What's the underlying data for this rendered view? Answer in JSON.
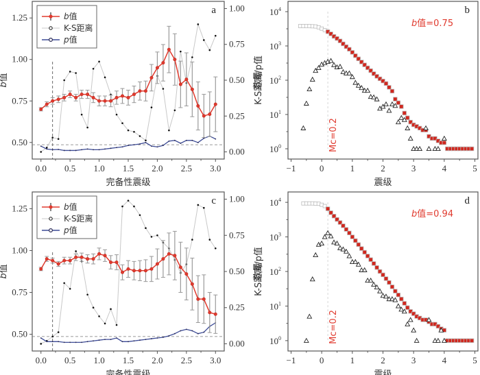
{
  "chart_data": [
    {
      "panel": "a",
      "type": "line",
      "xlabel": "完备性震级",
      "ylabel": "b值",
      "y2label": "K-S距离/p值",
      "xlim": [
        -0.15,
        3.15
      ],
      "ylim": [
        0.4,
        1.35
      ],
      "y2lim": [
        -0.05,
        1.05
      ],
      "xticks": [
        "0.0",
        "0.5",
        "1.0",
        "1.5",
        "2.0",
        "2.5",
        "3.0"
      ],
      "yticks": [
        "0.50",
        "0.75",
        "1.00",
        "1.25"
      ],
      "y2ticks": [
        "0.00",
        "0.25",
        "0.50",
        "0.75",
        "1.00"
      ],
      "legend": [
        "b值",
        "K-S距离",
        "p值"
      ],
      "legend_position": "top-left",
      "mc_line": 0.2,
      "p_threshold": 0.05,
      "x": [
        0.0,
        0.1,
        0.2,
        0.3,
        0.4,
        0.5,
        0.6,
        0.7,
        0.8,
        0.9,
        1.0,
        1.1,
        1.2,
        1.3,
        1.4,
        1.5,
        1.6,
        1.7,
        1.8,
        1.9,
        2.0,
        2.1,
        2.2,
        2.3,
        2.4,
        2.5,
        2.6,
        2.7,
        2.8,
        2.9,
        3.0
      ],
      "series": [
        {
          "name": "b值",
          "axis": "left",
          "values": [
            0.7,
            0.73,
            0.75,
            0.76,
            0.77,
            0.79,
            0.77,
            0.79,
            0.79,
            0.77,
            0.75,
            0.75,
            0.75,
            0.77,
            0.78,
            0.77,
            0.79,
            0.81,
            0.81,
            0.89,
            0.95,
            0.98,
            1.06,
            1.0,
            0.85,
            0.88,
            0.82,
            0.72,
            0.66,
            0.67,
            0.73
          ],
          "errors": [
            0.01,
            0.015,
            0.02,
            0.02,
            0.02,
            0.02,
            0.02,
            0.025,
            0.025,
            0.03,
            0.03,
            0.03,
            0.035,
            0.04,
            0.045,
            0.045,
            0.05,
            0.055,
            0.06,
            0.08,
            0.095,
            0.11,
            0.14,
            0.155,
            0.14,
            0.16,
            0.165,
            0.145,
            0.13,
            0.135,
            0.165
          ]
        },
        {
          "name": "K-S距离",
          "axis": "right",
          "values": [
            0.0,
            0.03,
            0.1,
            0.09,
            0.5,
            0.56,
            0.55,
            0.26,
            0.17,
            0.58,
            0.63,
            0.52,
            0.4,
            0.26,
            0.2,
            0.15,
            0.14,
            0.11,
            0.08,
            0.31,
            0.53,
            0.44,
            0.15,
            0.29,
            0.7,
            0.48,
            0.66,
            0.89,
            0.78,
            0.71,
            0.81
          ]
        },
        {
          "name": "p值",
          "axis": "right",
          "values": [
            0.04,
            0.02,
            0.015,
            0.017,
            0.01,
            0.01,
            0.01,
            0.015,
            0.02,
            0.015,
            0.015,
            0.02,
            0.025,
            0.03,
            0.035,
            0.045,
            0.05,
            0.055,
            0.065,
            0.04,
            0.035,
            0.045,
            0.075,
            0.08,
            0.06,
            0.08,
            0.08,
            0.065,
            0.095,
            0.11,
            0.09
          ]
        }
      ]
    },
    {
      "panel": "b",
      "type": "scatter",
      "xlabel": "震级",
      "ylabel": "数量",
      "yscale": "log",
      "xlim": [
        -1.1,
        5.1
      ],
      "ylim_log10": [
        -0.3,
        4.3
      ],
      "xticks": [
        "−1",
        "0",
        "1",
        "2",
        "3",
        "4",
        "5"
      ],
      "yticks": [
        "10^0",
        "10^1",
        "10^2",
        "10^3",
        "10^4"
      ],
      "annotation": "b值=0.75",
      "mc_label": "Mc=0.2",
      "mc": 0.2,
      "cumulative_below_mc": {
        "x": [
          -0.7,
          -0.6,
          -0.5,
          -0.4,
          -0.3,
          -0.2,
          -0.1,
          0.0,
          0.1
        ],
        "y": [
          3800,
          3800,
          3800,
          3780,
          3750,
          3700,
          3500,
          3200,
          2900
        ]
      },
      "cumulative": {
        "x": [
          0.2,
          0.3,
          0.4,
          0.5,
          0.6,
          0.7,
          0.8,
          0.9,
          1.0,
          1.1,
          1.2,
          1.3,
          1.4,
          1.5,
          1.6,
          1.7,
          1.8,
          1.9,
          2.0,
          2.1,
          2.2,
          2.3,
          2.4,
          2.5,
          2.6,
          2.7,
          2.8,
          2.9,
          3.0,
          3.1,
          3.2,
          3.3,
          3.4,
          3.5,
          3.6,
          3.7,
          3.8,
          3.9,
          4.0,
          4.1,
          4.2,
          4.3,
          4.4,
          4.5,
          4.6,
          4.7,
          4.8,
          4.9
        ],
        "y": [
          2600,
          2250,
          1900,
          1650,
          1400,
          1150,
          950,
          800,
          650,
          520,
          420,
          340,
          280,
          230,
          190,
          155,
          130,
          110,
          95,
          80,
          62,
          48,
          28,
          22,
          17,
          11,
          8,
          6,
          5,
          4.5,
          4,
          3.5,
          3.5,
          2.3,
          2,
          2,
          1.7,
          1.5,
          1.5,
          1,
          1,
          1,
          1,
          1,
          1,
          1,
          1,
          1
        ]
      },
      "noncumulative": {
        "x": [
          -0.6,
          -0.5,
          -0.4,
          -0.3,
          -0.2,
          -0.1,
          0.0,
          0.1,
          0.2,
          0.3,
          0.4,
          0.5,
          0.6,
          0.7,
          0.8,
          0.9,
          1.0,
          1.1,
          1.2,
          1.3,
          1.4,
          1.5,
          1.6,
          1.7,
          1.8,
          1.9,
          2.0,
          2.1,
          2.2,
          2.3,
          2.4,
          2.5,
          2.6,
          2.7,
          2.8,
          2.9,
          3.0,
          3.1,
          3.2,
          3.4,
          3.5,
          3.7,
          3.8,
          4.0
        ],
        "y": [
          4,
          21,
          55,
          105,
          190,
          230,
          290,
          320,
          350,
          370,
          280,
          240,
          250,
          175,
          160,
          160,
          125,
          85,
          70,
          60,
          50,
          50,
          33,
          32,
          28,
          15,
          17,
          20,
          13,
          20,
          18,
          6,
          8,
          7,
          4,
          2,
          1,
          1,
          1,
          4,
          1,
          1,
          1,
          2
        ]
      }
    },
    {
      "panel": "c",
      "type": "line",
      "xlabel": "完备性震级",
      "ylabel": "b值",
      "y2label": "K-S距离/p值",
      "xlim": [
        -0.15,
        3.15
      ],
      "ylim": [
        0.4,
        1.35
      ],
      "y2lim": [
        -0.05,
        1.05
      ],
      "xticks": [
        "0.0",
        "0.5",
        "1.0",
        "1.5",
        "2.0",
        "2.5",
        "3.0"
      ],
      "yticks": [
        "0.50",
        "0.75",
        "1.00",
        "1.25"
      ],
      "y2ticks": [
        "0.00",
        "0.25",
        "0.50",
        "0.75",
        "1.00"
      ],
      "legend": [
        "b值",
        "K-S距离",
        "p值"
      ],
      "legend_position": "top-left",
      "mc_line": 0.2,
      "p_threshold": 0.05,
      "x": [
        0.0,
        0.1,
        0.2,
        0.3,
        0.4,
        0.5,
        0.6,
        0.7,
        0.8,
        0.9,
        1.0,
        1.1,
        1.2,
        1.3,
        1.4,
        1.5,
        1.6,
        1.7,
        1.8,
        1.9,
        2.0,
        2.1,
        2.2,
        2.3,
        2.4,
        2.5,
        2.6,
        2.7,
        2.8,
        2.9,
        3.0
      ],
      "series": [
        {
          "name": "b值",
          "axis": "left",
          "values": [
            0.89,
            0.95,
            0.94,
            0.92,
            0.94,
            0.94,
            0.96,
            0.96,
            0.95,
            0.95,
            0.98,
            0.97,
            0.93,
            0.93,
            0.87,
            0.89,
            0.88,
            0.88,
            0.88,
            0.89,
            0.92,
            0.95,
            0.98,
            0.97,
            0.9,
            0.86,
            0.8,
            0.71,
            0.71,
            0.63,
            0.62
          ],
          "errors": [
            0.01,
            0.015,
            0.015,
            0.015,
            0.02,
            0.02,
            0.02,
            0.025,
            0.025,
            0.03,
            0.035,
            0.035,
            0.04,
            0.045,
            0.045,
            0.05,
            0.055,
            0.06,
            0.065,
            0.075,
            0.09,
            0.11,
            0.125,
            0.145,
            0.15,
            0.155,
            0.155,
            0.14,
            0.145,
            0.12,
            0.115
          ]
        },
        {
          "name": "K-S距离",
          "axis": "right",
          "values": [
            0.0,
            0.02,
            0.05,
            0.08,
            0.42,
            0.38,
            0.64,
            0.57,
            0.34,
            0.25,
            0.19,
            0.14,
            0.24,
            0.13,
            0.95,
            0.99,
            0.95,
            0.89,
            0.8,
            0.74,
            0.75,
            0.7,
            0.66,
            0.58,
            0.49,
            0.55,
            0.72,
            0.96,
            0.94,
            0.72,
            0.66
          ]
        },
        {
          "name": "p值",
          "axis": "right",
          "values": [
            0.04,
            0.015,
            0.015,
            0.015,
            0.01,
            0.01,
            0.01,
            0.01,
            0.015,
            0.02,
            0.025,
            0.03,
            0.03,
            0.04,
            0.015,
            0.015,
            0.02,
            0.025,
            0.03,
            0.035,
            0.04,
            0.045,
            0.055,
            0.07,
            0.09,
            0.1,
            0.09,
            0.07,
            0.08,
            0.12,
            0.145
          ]
        }
      ]
    },
    {
      "panel": "d",
      "type": "scatter",
      "xlabel": "震级",
      "ylabel": "数量",
      "yscale": "log",
      "xlim": [
        -1.1,
        5.1
      ],
      "ylim_log10": [
        -0.3,
        4.3
      ],
      "xticks": [
        "−1",
        "0",
        "1",
        "2",
        "3",
        "4",
        "5"
      ],
      "yticks": [
        "10^0",
        "10^1",
        "10^2",
        "10^3",
        "10^4"
      ],
      "annotation": "b值=0.94",
      "mc_label": "Mc=0.2",
      "mc": 0.2,
      "cumulative_below_mc": {
        "x": [
          -0.6,
          -0.5,
          -0.4,
          -0.3,
          -0.2,
          -0.1,
          0.0,
          0.1
        ],
        "y": [
          9300,
          9300,
          9300,
          9300,
          9200,
          9100,
          8500,
          7800
        ]
      },
      "cumulative": {
        "x": [
          0.2,
          0.3,
          0.4,
          0.5,
          0.6,
          0.7,
          0.8,
          0.9,
          1.0,
          1.1,
          1.2,
          1.3,
          1.4,
          1.5,
          1.6,
          1.7,
          1.8,
          1.9,
          2.0,
          2.1,
          2.2,
          2.3,
          2.4,
          2.5,
          2.6,
          2.7,
          2.8,
          2.9,
          3.0,
          3.1,
          3.2,
          3.3,
          3.4,
          3.5,
          3.6,
          3.7,
          3.8,
          3.9,
          4.0,
          4.1,
          4.2,
          4.3,
          4.4,
          4.5,
          4.6,
          4.7,
          4.8,
          4.9
        ],
        "y": [
          6500,
          5000,
          4000,
          3200,
          2600,
          2100,
          1650,
          1300,
          1000,
          780,
          600,
          460,
          360,
          280,
          220,
          170,
          130,
          100,
          80,
          62,
          48,
          36,
          27,
          21,
          16,
          12,
          9,
          7,
          6,
          5,
          4.5,
          4,
          4,
          3.5,
          3,
          3,
          2.6,
          2.2,
          2,
          1,
          1,
          1,
          1,
          1,
          1,
          1,
          1,
          1
        ]
      },
      "noncumulative": {
        "x": [
          -0.5,
          -0.4,
          -0.3,
          -0.2,
          -0.1,
          0.0,
          0.1,
          0.2,
          0.3,
          0.4,
          0.5,
          0.6,
          0.7,
          0.8,
          0.9,
          1.0,
          1.1,
          1.2,
          1.3,
          1.4,
          1.5,
          1.6,
          1.7,
          1.8,
          1.9,
          2.0,
          2.1,
          2.2,
          2.3,
          2.4,
          2.5,
          2.6,
          2.7,
          2.8,
          2.9,
          3.0,
          3.1,
          3.5,
          3.7,
          3.8,
          3.9,
          4.0
        ],
        "y": [
          1,
          5,
          60,
          300,
          600,
          650,
          1000,
          1300,
          1050,
          700,
          650,
          480,
          440,
          380,
          280,
          190,
          190,
          160,
          110,
          110,
          55,
          55,
          42,
          35,
          27,
          20,
          19,
          16,
          16,
          15,
          10,
          8,
          7,
          3,
          4,
          2,
          1,
          4,
          1,
          1,
          2,
          1
        ]
      }
    }
  ]
}
